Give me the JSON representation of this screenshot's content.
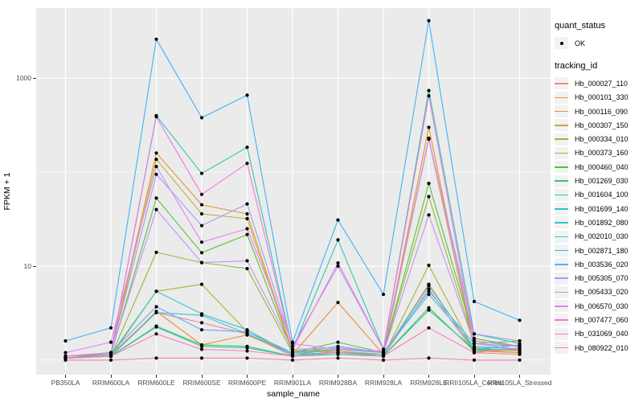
{
  "legend_quant": {
    "title": "quant_status",
    "items": [
      "OK"
    ]
  },
  "legend_tracking": {
    "title": "tracking_id"
  },
  "chart_data": {
    "type": "line",
    "title": "",
    "xlabel": "sample_name",
    "ylabel": "FPKM + 1",
    "y_scale": "log10",
    "ylim": [
      0.7,
      5500
    ],
    "y_major_ticks": [
      1000,
      10
    ],
    "y_minor_ticks": [
      1,
      100
    ],
    "panel_bg": "#EBEBEB",
    "grid_color": "#FFFFFF",
    "point_color": "#000000",
    "legend_position": "right",
    "categories": [
      "PB350LA",
      "RRIM600LA",
      "RRIM600LE",
      "RRIM600SE",
      "RRIM600PE",
      "RRIM901LA",
      "RRIM928BA",
      "RRIM928LA",
      "RRIM928LE",
      "RRII105LA_Control",
      "RRII105LA_Stressed"
    ],
    "series": [
      {
        "name": "Hb_000027_110",
        "color": "#F4877F",
        "values": [
          1.1,
          1.15,
          3.2,
          2.5,
          1.9,
          1.1,
          1.25,
          1.1,
          5.7,
          1.2,
          1.15
        ]
      },
      {
        "name": "Hb_000101_330",
        "color": "#EC8C31",
        "values": [
          1.05,
          1.1,
          3.3,
          1.45,
          1.85,
          1.15,
          4.1,
          1.15,
          6.4,
          1.25,
          1.2
        ]
      },
      {
        "name": "Hb_000116_090",
        "color": "#DC9B26",
        "values": [
          1.05,
          1.2,
          160,
          45,
          36,
          1.25,
          1.3,
          1.2,
          300,
          1.35,
          1.25
        ]
      },
      {
        "name": "Hb_000307_150",
        "color": "#CBA93D",
        "values": [
          1.05,
          1.15,
          137,
          36,
          32,
          1.2,
          1.25,
          1.15,
          225,
          1.3,
          1.2
        ]
      },
      {
        "name": "Hb_000334_010",
        "color": "#AFB034",
        "values": [
          1.05,
          1.1,
          5.4,
          6.4,
          2.0,
          1.15,
          1.2,
          1.1,
          10.2,
          1.25,
          1.3
        ]
      },
      {
        "name": "Hb_000373_160",
        "color": "#90BB36",
        "values": [
          1.05,
          1.1,
          14,
          10.9,
          9.4,
          1.2,
          1.3,
          1.2,
          55,
          1.5,
          1.6
        ]
      },
      {
        "name": "Hb_000460_040",
        "color": "#58C13D",
        "values": [
          1.05,
          1.15,
          53,
          13.9,
          21.7,
          1.2,
          1.55,
          1.2,
          76,
          1.7,
          1.4
        ]
      },
      {
        "name": "Hb_001269_030",
        "color": "#3EC46C",
        "values": [
          1.05,
          1.1,
          2.3,
          1.45,
          1.4,
          1.1,
          1.2,
          1.1,
          3.6,
          1.25,
          1.3
        ]
      },
      {
        "name": "Hb_001604_100",
        "color": "#33C795",
        "values": [
          1.05,
          1.1,
          2.25,
          1.4,
          1.35,
          1.1,
          1.15,
          1.1,
          3.4,
          1.3,
          1.45
        ]
      },
      {
        "name": "Hb_001699_140",
        "color": "#2CC8B2",
        "values": [
          1.1,
          1.2,
          400,
          97,
          184,
          1.3,
          19,
          1.3,
          740,
          1.9,
          1.5
        ]
      },
      {
        "name": "Hb_001892_080",
        "color": "#33C6CB",
        "values": [
          1.05,
          1.15,
          5.4,
          3.1,
          2.1,
          1.15,
          1.2,
          1.15,
          6.2,
          1.3,
          1.3
        ]
      },
      {
        "name": "Hb_002010_030",
        "color": "#39C2E3",
        "values": [
          1.05,
          1.1,
          3.2,
          3.0,
          1.9,
          1.15,
          1.3,
          1.2,
          5.0,
          1.4,
          1.3
        ]
      },
      {
        "name": "Hb_002871_180",
        "color": "#3CB5F6",
        "values": [
          1.6,
          2.2,
          2600,
          380,
          660,
          1.55,
          31,
          5.0,
          4100,
          4.2,
          2.65
        ]
      },
      {
        "name": "Hb_003536_020",
        "color": "#68A9FC",
        "values": [
          1.1,
          1.2,
          3.7,
          2.1,
          2.0,
          1.2,
          1.4,
          1.2,
          5.4,
          1.5,
          1.4
        ]
      },
      {
        "name": "Hb_005305_070",
        "color": "#A29DF9",
        "values": [
          1.1,
          1.2,
          95,
          27,
          46,
          1.4,
          10,
          1.3,
          225,
          1.9,
          1.6
        ]
      },
      {
        "name": "Hb_005433_020",
        "color": "#C890F7",
        "values": [
          1.1,
          1.2,
          40,
          10.9,
          11.4,
          1.3,
          1.35,
          1.2,
          35,
          1.5,
          1.3
        ]
      },
      {
        "name": "Hb_006570_030",
        "color": "#E383F1",
        "values": [
          1.2,
          1.55,
          115,
          18,
          25,
          1.5,
          1.3,
          1.25,
          230,
          1.6,
          1.4
        ]
      },
      {
        "name": "Hb_007477_060",
        "color": "#F177E0",
        "values": [
          1.1,
          1.2,
          390,
          58,
          124,
          1.3,
          10.8,
          1.3,
          650,
          1.6,
          1.4
        ]
      },
      {
        "name": "Hb_031069_040",
        "color": "#F87CC5",
        "values": [
          1.05,
          1.1,
          1.9,
          1.3,
          1.25,
          1.1,
          1.2,
          1.1,
          2.2,
          1.2,
          1.35
        ]
      },
      {
        "name": "Hb_080922_010",
        "color": "#F783A4",
        "values": [
          1.0,
          1.0,
          1.05,
          1.05,
          1.05,
          1.0,
          1.05,
          1.0,
          1.05,
          1.0,
          1.0
        ]
      }
    ]
  }
}
